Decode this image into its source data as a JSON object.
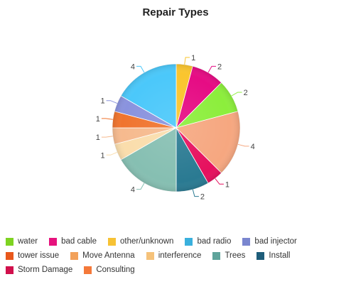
{
  "chart_data": {
    "type": "pie",
    "title": "Repair Types",
    "legend_position": "bottom",
    "slices": [
      {
        "label": "other/unknown",
        "value": 1,
        "color": "#F7C234",
        "slice_color": "#FAC52E"
      },
      {
        "label": "bad cable",
        "value": 2,
        "color": "#E6127D",
        "slice_color": "#E60C84"
      },
      {
        "label": "water",
        "value": 2,
        "color": "#7ED321",
        "slice_color": "#8CEE3C"
      },
      {
        "label": "Consulting",
        "value": 4,
        "color": "#F4793A",
        "slice_color": "#F6A780"
      },
      {
        "label": "Storm Damage",
        "value": 1,
        "color": "#D1104C",
        "slice_color": "#E6105E"
      },
      {
        "label": "Install",
        "value": 2,
        "color": "#1E5D7A",
        "slice_color": "#2A7A92"
      },
      {
        "label": "Trees",
        "value": 4,
        "color": "#5FA49B",
        "slice_color": "#86BFB2"
      },
      {
        "label": "interference",
        "value": 1,
        "color": "#F5C27A",
        "slice_color": "#FADDAC"
      },
      {
        "label": "Move Antenna",
        "value": 1,
        "color": "#F2A15A",
        "slice_color": "#F6BA8E"
      },
      {
        "label": "tower issue",
        "value": 1,
        "color": "#E8581C",
        "slice_color": "#F0742E"
      },
      {
        "label": "bad injector",
        "value": 1,
        "color": "#7A86CF",
        "slice_color": "#8A93DE"
      },
      {
        "label": "bad radio",
        "value": 4,
        "color": "#3AB0DD",
        "slice_color": "#4BC8FA"
      }
    ],
    "legend": [
      [
        "water",
        "bad cable",
        "other/unknown",
        "bad radio",
        "bad injector"
      ],
      [
        "tower issue",
        "Move Antenna",
        "interference",
        "Trees",
        "Install"
      ],
      [
        "Storm Damage",
        "Consulting"
      ]
    ]
  }
}
